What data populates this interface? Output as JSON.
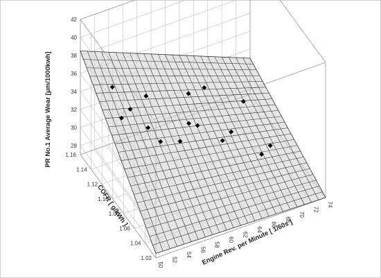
{
  "chart_data": {
    "type": "surface3d",
    "xlabel": "Engine Rev. per Minute [ 1/60s ]",
    "ylabel": "COFR [ g/kWh ]",
    "zlabel": "PR No.1 Average Wear [μm/1000kwh]",
    "x_ticks": [
      "50",
      "52",
      "54",
      "56",
      "58",
      "60",
      "62",
      "64",
      "66",
      "68",
      "70",
      "72",
      "74"
    ],
    "y_ticks": [
      "1.02",
      "1.04",
      "1.06",
      "1.08",
      "1.10",
      "1.12",
      "1.14",
      "1.16"
    ],
    "z_ticks": [
      "28",
      "30",
      "32",
      "34",
      "36",
      "38",
      "40",
      "42"
    ],
    "xlim": [
      50,
      74
    ],
    "ylim": [
      1.02,
      1.16
    ],
    "zlim": [
      27,
      42
    ],
    "surface_corners": {
      "x50_y1.02": 27.5,
      "x74_y1.02": 27.0,
      "x50_y1.16": 38.5,
      "x74_y1.16": 31.0
    },
    "points": [
      {
        "x": 55,
        "y": 1.1,
        "z": 33.5
      },
      {
        "x": 56,
        "y": 1.09,
        "z": 32.5
      },
      {
        "x": 58,
        "y": 1.08,
        "z": 32.8
      },
      {
        "x": 60,
        "y": 1.09,
        "z": 33.4
      },
      {
        "x": 54,
        "y": 1.12,
        "z": 34.2
      },
      {
        "x": 52,
        "y": 1.11,
        "z": 34.6
      },
      {
        "x": 53,
        "y": 1.14,
        "z": 35.3
      },
      {
        "x": 57,
        "y": 1.13,
        "z": 34.0
      },
      {
        "x": 62,
        "y": 1.1,
        "z": 31.8
      },
      {
        "x": 64,
        "y": 1.08,
        "z": 31.2
      },
      {
        "x": 66,
        "y": 1.09,
        "z": 30.8
      },
      {
        "x": 68,
        "y": 1.06,
        "z": 30.2
      },
      {
        "x": 63,
        "y": 1.13,
        "z": 32.6
      },
      {
        "x": 66,
        "y": 1.14,
        "z": 31.6
      },
      {
        "x": 70,
        "y": 1.12,
        "z": 30.6
      },
      {
        "x": 70,
        "y": 1.07,
        "z": 29.8
      }
    ],
    "grid": true
  }
}
